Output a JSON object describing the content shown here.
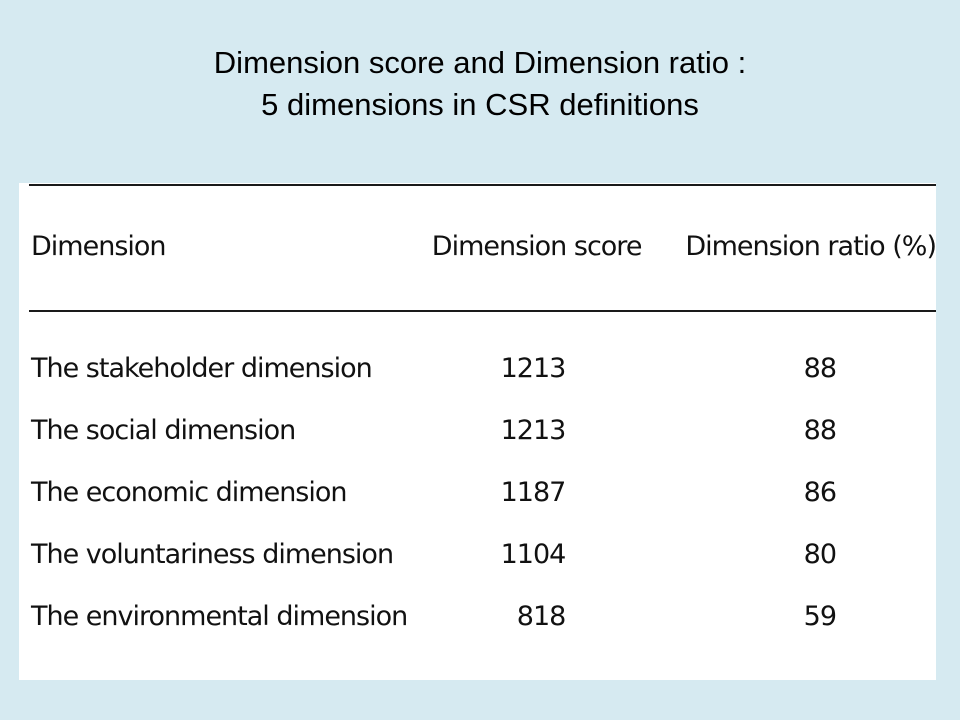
{
  "title": {
    "line1": "Dimension score and Dimension ratio :",
    "line2": "5 dimensions in CSR definitions"
  },
  "table": {
    "headers": [
      "Dimension",
      "Dimension score",
      "Dimension ratio (%)"
    ],
    "rows": [
      {
        "dimension": "The stakeholder dimension",
        "score": "1213",
        "ratio": "88"
      },
      {
        "dimension": "The social dimension",
        "score": "1213",
        "ratio": "88"
      },
      {
        "dimension": "The economic dimension",
        "score": "1187",
        "ratio": "86"
      },
      {
        "dimension": "The voluntariness dimension",
        "score": "1104",
        "ratio": "80"
      },
      {
        "dimension": "The environmental dimension",
        "score": "818",
        "ratio": "59"
      }
    ]
  }
}
